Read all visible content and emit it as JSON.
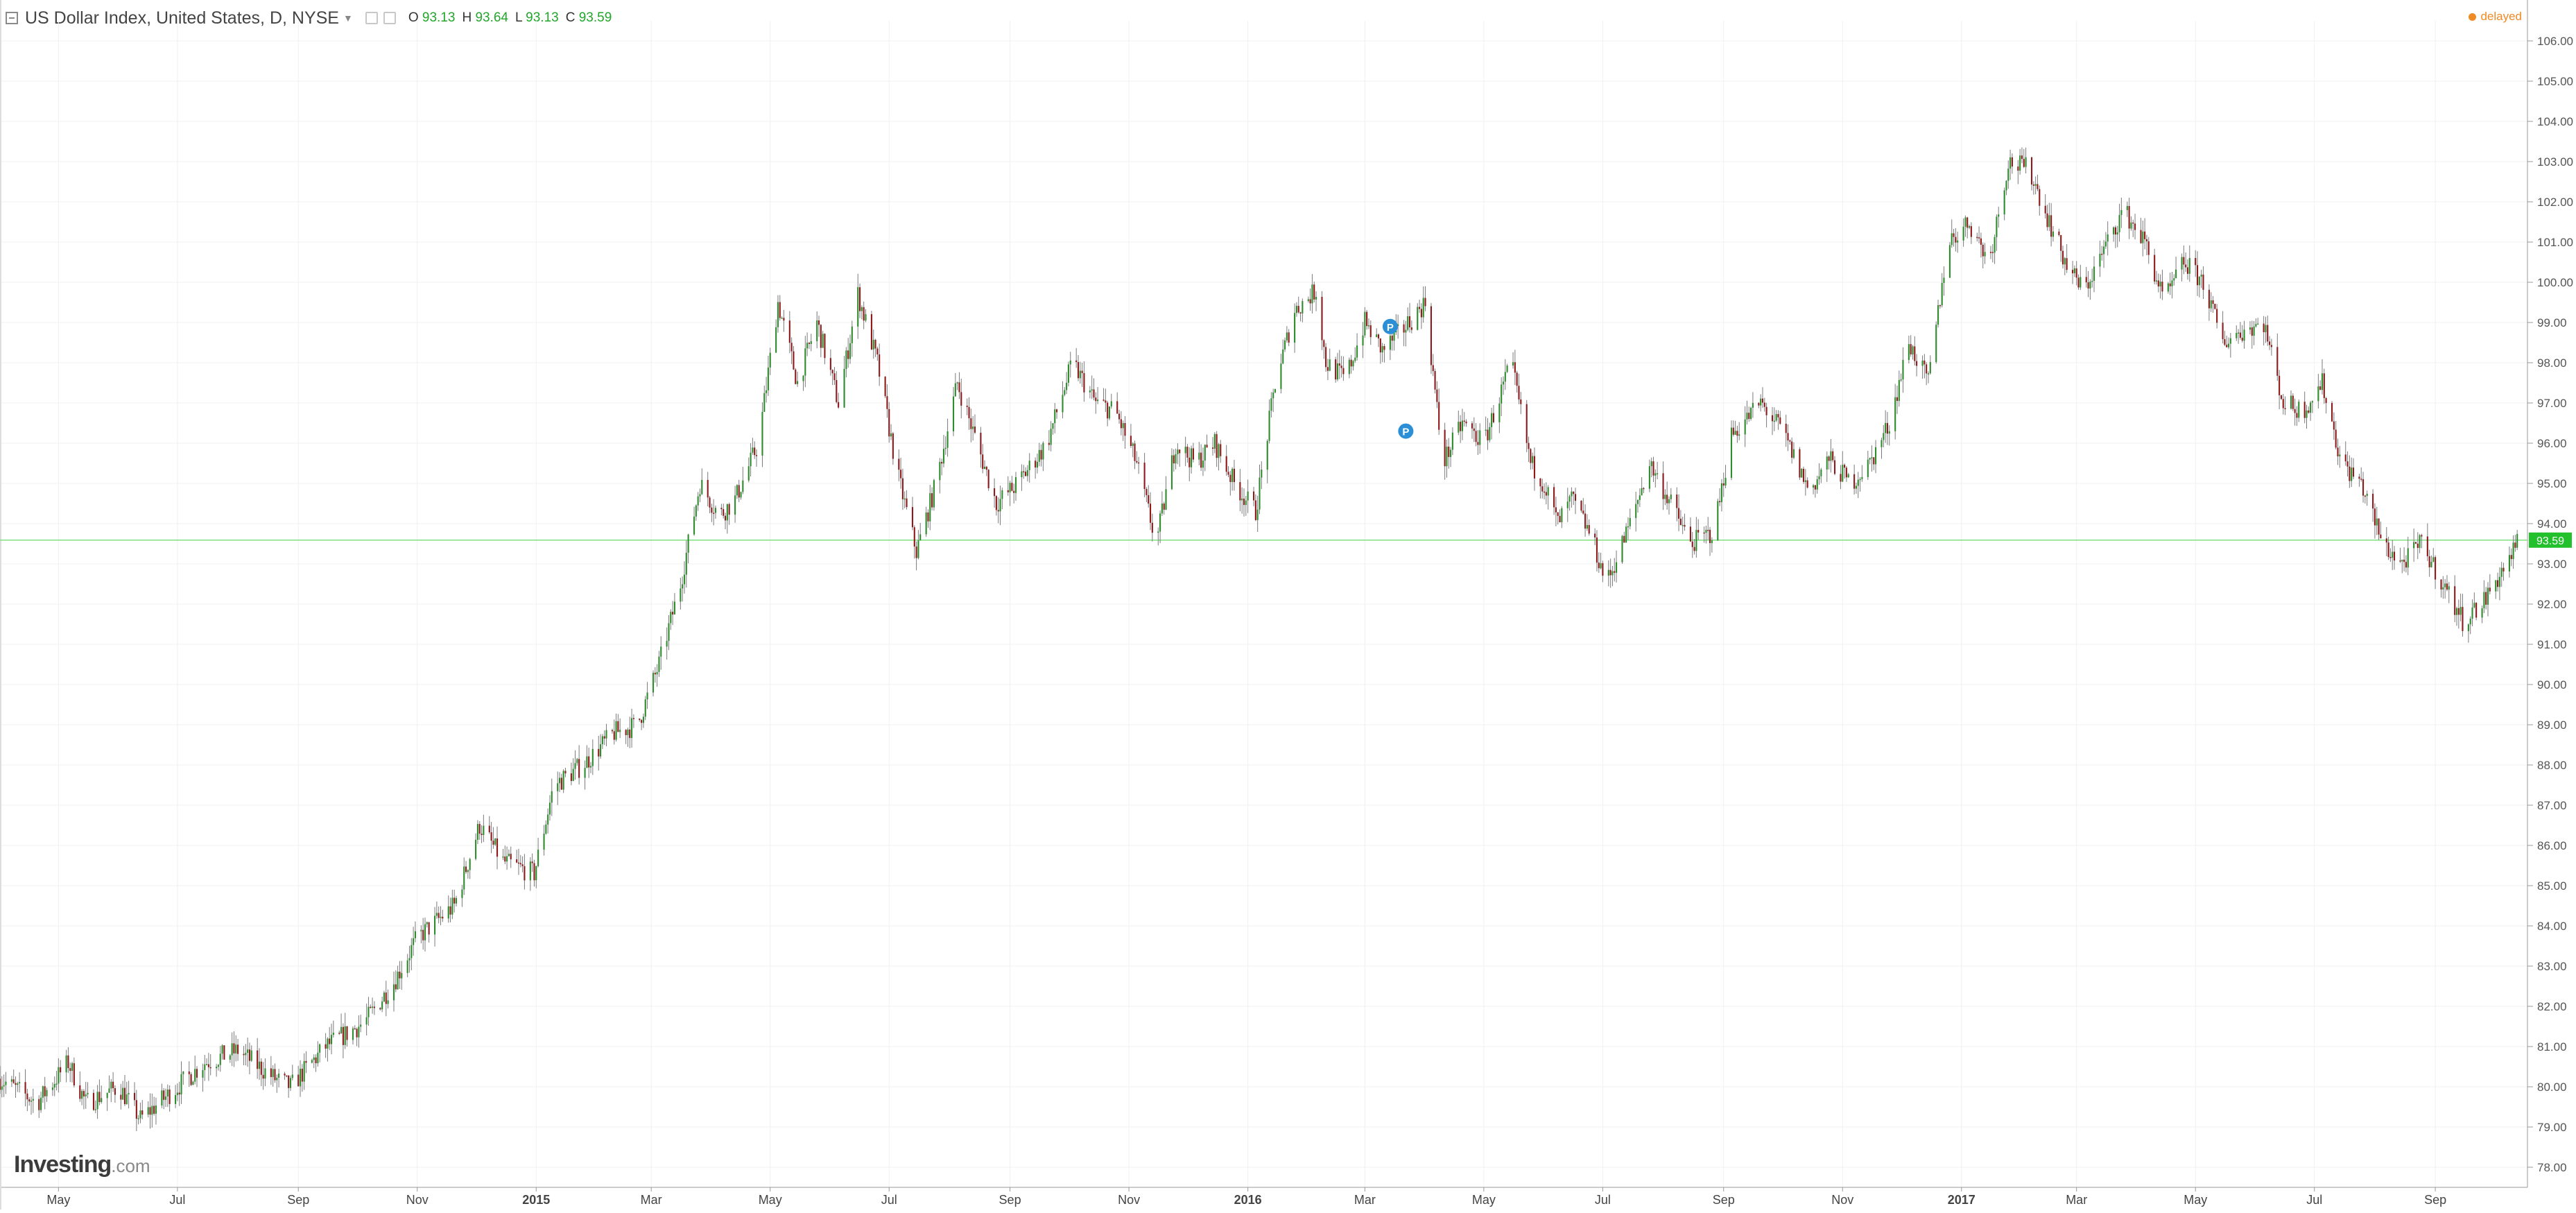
{
  "header": {
    "title": "US Dollar Index, United States, D, NYSE",
    "ohlc": [
      {
        "label": "O",
        "value": "93.13"
      },
      {
        "label": "H",
        "value": "93.64"
      },
      {
        "label": "L",
        "value": "93.13"
      },
      {
        "label": "C",
        "value": "93.59"
      }
    ],
    "status": "delayed"
  },
  "logo": {
    "main": "Investing",
    "suffix": ".com"
  },
  "colors": {
    "up": "#2e8b2e",
    "down": "#8b1a1a",
    "wick": "#7a7a7a",
    "last_price_bg": "#22c02a",
    "grid": "#f0f0f0"
  },
  "chart_data": {
    "type": "candlestick",
    "title": "US Dollar Index, United States, D, NYSE",
    "x_range": [
      "2014-04-01",
      "2017-10-14"
    ],
    "ylim": [
      77.5,
      106.5
    ],
    "y_ticks": [
      "78.00",
      "79.00",
      "80.00",
      "81.00",
      "82.00",
      "83.00",
      "84.00",
      "85.00",
      "86.00",
      "87.00",
      "88.00",
      "89.00",
      "90.00",
      "91.00",
      "92.00",
      "93.00",
      "94.00",
      "95.00",
      "96.00",
      "97.00",
      "98.00",
      "99.00",
      "100.00",
      "101.00",
      "102.00",
      "103.00",
      "104.00",
      "105.00",
      "106.00"
    ],
    "x_ticks": [
      {
        "date": "2014-05-01",
        "label": "May",
        "bold": false
      },
      {
        "date": "2014-07-01",
        "label": "Jul",
        "bold": false
      },
      {
        "date": "2014-09-01",
        "label": "Sep",
        "bold": false
      },
      {
        "date": "2014-11-01",
        "label": "Nov",
        "bold": false
      },
      {
        "date": "2015-01-01",
        "label": "2015",
        "bold": true
      },
      {
        "date": "2015-03-01",
        "label": "Mar",
        "bold": false
      },
      {
        "date": "2015-05-01",
        "label": "May",
        "bold": false
      },
      {
        "date": "2015-07-01",
        "label": "Jul",
        "bold": false
      },
      {
        "date": "2015-09-01",
        "label": "Sep",
        "bold": false
      },
      {
        "date": "2015-11-01",
        "label": "Nov",
        "bold": false
      },
      {
        "date": "2016-01-01",
        "label": "2016",
        "bold": true
      },
      {
        "date": "2016-03-01",
        "label": "Mar",
        "bold": false
      },
      {
        "date": "2016-05-01",
        "label": "May",
        "bold": false
      },
      {
        "date": "2016-07-01",
        "label": "Jul",
        "bold": false
      },
      {
        "date": "2016-09-01",
        "label": "Sep",
        "bold": false
      },
      {
        "date": "2016-11-01",
        "label": "Nov",
        "bold": false
      },
      {
        "date": "2017-01-01",
        "label": "2017",
        "bold": true
      },
      {
        "date": "2017-03-01",
        "label": "Mar",
        "bold": false
      },
      {
        "date": "2017-05-01",
        "label": "May",
        "bold": false
      },
      {
        "date": "2017-07-01",
        "label": "Jul",
        "bold": false
      },
      {
        "date": "2017-09-01",
        "label": "Sep",
        "bold": false
      }
    ],
    "close_path": [
      {
        "date": "2014-04-01",
        "close": 80.2
      },
      {
        "date": "2014-04-20",
        "close": 79.6
      },
      {
        "date": "2014-05-06",
        "close": 80.6
      },
      {
        "date": "2014-05-15",
        "close": 79.6
      },
      {
        "date": "2014-06-01",
        "close": 80.0
      },
      {
        "date": "2014-06-12",
        "close": 79.2
      },
      {
        "date": "2014-07-01",
        "close": 80.0
      },
      {
        "date": "2014-07-15",
        "close": 80.6
      },
      {
        "date": "2014-08-01",
        "close": 80.9
      },
      {
        "date": "2014-08-20",
        "close": 80.2
      },
      {
        "date": "2014-08-28",
        "close": 80.0
      },
      {
        "date": "2014-09-15",
        "close": 81.0
      },
      {
        "date": "2014-10-05",
        "close": 81.6
      },
      {
        "date": "2014-10-20",
        "close": 82.6
      },
      {
        "date": "2014-11-01",
        "close": 83.7
      },
      {
        "date": "2014-11-20",
        "close": 84.5
      },
      {
        "date": "2014-12-03",
        "close": 86.5
      },
      {
        "date": "2014-12-15",
        "close": 85.6
      },
      {
        "date": "2014-12-31",
        "close": 85.3
      },
      {
        "date": "2015-01-10",
        "close": 87.5
      },
      {
        "date": "2015-01-25",
        "close": 88.0
      },
      {
        "date": "2015-02-10",
        "close": 88.8
      },
      {
        "date": "2015-02-22",
        "close": 89.0
      },
      {
        "date": "2015-03-05",
        "close": 90.5
      },
      {
        "date": "2015-03-16",
        "close": 92.5
      },
      {
        "date": "2015-03-26",
        "close": 95.0
      },
      {
        "date": "2015-04-05",
        "close": 94.2
      },
      {
        "date": "2015-04-13",
        "close": 94.6
      },
      {
        "date": "2015-04-25",
        "close": 96.0
      },
      {
        "date": "2015-05-05",
        "close": 99.5
      },
      {
        "date": "2015-05-15",
        "close": 97.5
      },
      {
        "date": "2015-05-25",
        "close": 99.0
      },
      {
        "date": "2015-06-05",
        "close": 97.0
      },
      {
        "date": "2015-06-15",
        "close": 99.7
      },
      {
        "date": "2015-06-25",
        "close": 98.0
      },
      {
        "date": "2015-07-05",
        "close": 95.3
      },
      {
        "date": "2015-07-15",
        "close": 93.3
      },
      {
        "date": "2015-07-25",
        "close": 95.0
      },
      {
        "date": "2015-08-05",
        "close": 97.5
      },
      {
        "date": "2015-08-15",
        "close": 96.0
      },
      {
        "date": "2015-08-25",
        "close": 94.5
      },
      {
        "date": "2015-09-05",
        "close": 95.0
      },
      {
        "date": "2015-09-20",
        "close": 96.0
      },
      {
        "date": "2015-10-03",
        "close": 98.0
      },
      {
        "date": "2015-10-15",
        "close": 97.0
      },
      {
        "date": "2015-10-25",
        "close": 96.8
      },
      {
        "date": "2015-11-05",
        "close": 95.5
      },
      {
        "date": "2015-11-15",
        "close": 93.5
      },
      {
        "date": "2015-11-25",
        "close": 96.0
      },
      {
        "date": "2015-12-05",
        "close": 95.5
      },
      {
        "date": "2015-12-15",
        "close": 96.0
      },
      {
        "date": "2015-12-25",
        "close": 95.0
      },
      {
        "date": "2016-01-05",
        "close": 94.3
      },
      {
        "date": "2016-01-15",
        "close": 97.5
      },
      {
        "date": "2016-01-25",
        "close": 99.3
      },
      {
        "date": "2016-02-05",
        "close": 99.8
      },
      {
        "date": "2016-02-10",
        "close": 98.0
      },
      {
        "date": "2016-02-20",
        "close": 97.6
      },
      {
        "date": "2016-03-01",
        "close": 99.0
      },
      {
        "date": "2016-03-10",
        "close": 98.3
      },
      {
        "date": "2016-03-20",
        "close": 98.8
      },
      {
        "date": "2016-04-01",
        "close": 99.5
      },
      {
        "date": "2016-04-10",
        "close": 95.5
      },
      {
        "date": "2016-04-20",
        "close": 96.5
      },
      {
        "date": "2016-05-01",
        "close": 96.0
      },
      {
        "date": "2016-05-15",
        "close": 98.0
      },
      {
        "date": "2016-05-25",
        "close": 95.5
      },
      {
        "date": "2016-06-01",
        "close": 95.0
      },
      {
        "date": "2016-06-08",
        "close": 94.0
      },
      {
        "date": "2016-06-15",
        "close": 94.6
      },
      {
        "date": "2016-06-25",
        "close": 93.7
      },
      {
        "date": "2016-07-03",
        "close": 92.5
      },
      {
        "date": "2016-07-15",
        "close": 94.0
      },
      {
        "date": "2016-07-25",
        "close": 95.5
      },
      {
        "date": "2016-08-05",
        "close": 94.5
      },
      {
        "date": "2016-08-15",
        "close": 93.5
      },
      {
        "date": "2016-08-27",
        "close": 93.8
      },
      {
        "date": "2016-09-05",
        "close": 96.2
      },
      {
        "date": "2016-09-20",
        "close": 97.0
      },
      {
        "date": "2016-10-01",
        "close": 96.3
      },
      {
        "date": "2016-10-15",
        "close": 94.8
      },
      {
        "date": "2016-10-25",
        "close": 95.6
      },
      {
        "date": "2016-11-05",
        "close": 95.0
      },
      {
        "date": "2016-11-15",
        "close": 95.5
      },
      {
        "date": "2016-11-25",
        "close": 96.5
      },
      {
        "date": "2016-12-05",
        "close": 98.5
      },
      {
        "date": "2016-12-15",
        "close": 97.5
      },
      {
        "date": "2016-12-25",
        "close": 101.0
      },
      {
        "date": "2017-01-05",
        "close": 101.5
      },
      {
        "date": "2017-01-15",
        "close": 100.5
      },
      {
        "date": "2017-01-25",
        "close": 103.0
      },
      {
        "date": "2017-02-05",
        "close": 102.8
      },
      {
        "date": "2017-02-15",
        "close": 101.5
      },
      {
        "date": "2017-02-25",
        "close": 100.3
      },
      {
        "date": "2017-03-05",
        "close": 99.8
      },
      {
        "date": "2017-03-15",
        "close": 100.8
      },
      {
        "date": "2017-03-25",
        "close": 101.8
      },
      {
        "date": "2017-04-05",
        "close": 101.0
      },
      {
        "date": "2017-04-15",
        "close": 99.5
      },
      {
        "date": "2017-04-25",
        "close": 100.5
      },
      {
        "date": "2017-05-05",
        "close": 100.0
      },
      {
        "date": "2017-05-15",
        "close": 98.5
      },
      {
        "date": "2017-05-25",
        "close": 98.8
      },
      {
        "date": "2017-06-05",
        "close": 99.0
      },
      {
        "date": "2017-06-15",
        "close": 97.0
      },
      {
        "date": "2017-06-25",
        "close": 96.8
      },
      {
        "date": "2017-07-05",
        "close": 97.5
      },
      {
        "date": "2017-07-15",
        "close": 95.5
      },
      {
        "date": "2017-07-25",
        "close": 95.0
      },
      {
        "date": "2017-08-05",
        "close": 93.5
      },
      {
        "date": "2017-08-15",
        "close": 93.0
      },
      {
        "date": "2017-08-25",
        "close": 93.5
      },
      {
        "date": "2017-09-05",
        "close": 92.5
      },
      {
        "date": "2017-09-15",
        "close": 91.6
      },
      {
        "date": "2017-09-25",
        "close": 92.0
      },
      {
        "date": "2017-10-05",
        "close": 92.8
      },
      {
        "date": "2017-10-14",
        "close": 93.59
      }
    ],
    "last_price": {
      "value": 93.59,
      "label": "93.59"
    },
    "event_markers": [
      {
        "date": "2016-03-14",
        "price": 98.9,
        "label": "P"
      },
      {
        "date": "2016-03-22",
        "price": 96.3,
        "label": "P"
      }
    ],
    "grid": true
  }
}
